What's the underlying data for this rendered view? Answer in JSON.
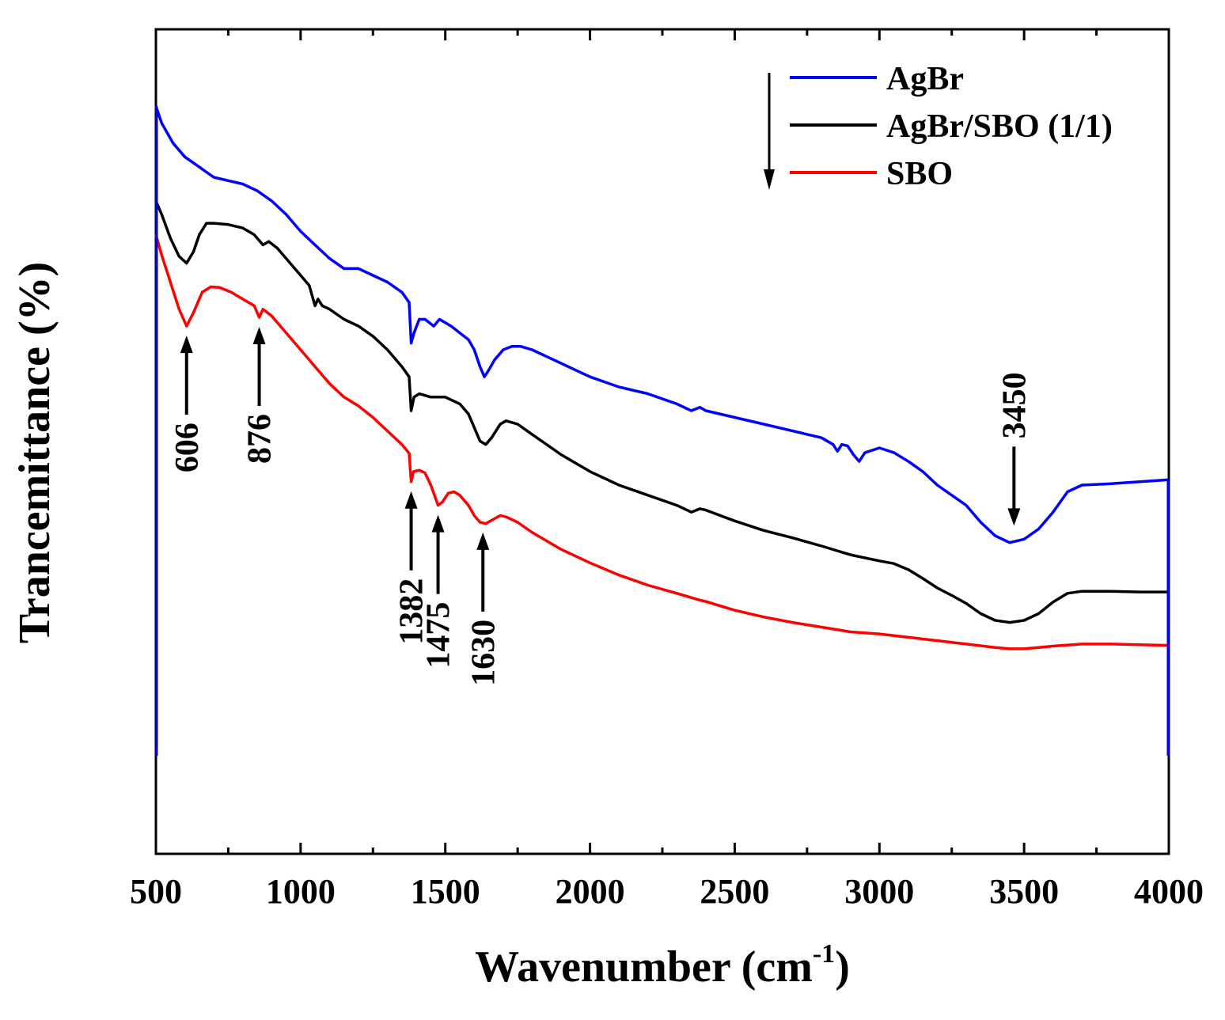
{
  "chart_data": {
    "type": "line",
    "title": "",
    "xlabel": "Wavenumber (cm",
    "xlabel_sup": "-1",
    "xlabel_close": ")",
    "ylabel": "Trancemittance (%)",
    "xlim": [
      500,
      4000
    ],
    "ylim": [
      0,
      1
    ],
    "grid": false,
    "x_ticks": [
      500,
      1000,
      1500,
      2000,
      2500,
      3000,
      3500,
      4000
    ],
    "x_tick_labels": [
      "500",
      "1000",
      "1500",
      "2000",
      "2500",
      "3000",
      "3500",
      "4000"
    ],
    "legend_position": "top-right",
    "series": [
      {
        "name": "AgBr",
        "color": "#0000ff",
        "points": [
          [
            500,
            0.96
          ],
          [
            520,
            0.935
          ],
          [
            560,
            0.905
          ],
          [
            600,
            0.885
          ],
          [
            650,
            0.87
          ],
          [
            700,
            0.855
          ],
          [
            750,
            0.85
          ],
          [
            800,
            0.845
          ],
          [
            850,
            0.835
          ],
          [
            900,
            0.82
          ],
          [
            950,
            0.8
          ],
          [
            1000,
            0.775
          ],
          [
            1050,
            0.755
          ],
          [
            1100,
            0.735
          ],
          [
            1150,
            0.72
          ],
          [
            1200,
            0.72
          ],
          [
            1250,
            0.71
          ],
          [
            1300,
            0.7
          ],
          [
            1350,
            0.685
          ],
          [
            1375,
            0.67
          ],
          [
            1382,
            0.61
          ],
          [
            1392,
            0.625
          ],
          [
            1410,
            0.645
          ],
          [
            1430,
            0.645
          ],
          [
            1460,
            0.635
          ],
          [
            1480,
            0.645
          ],
          [
            1500,
            0.64
          ],
          [
            1520,
            0.635
          ],
          [
            1550,
            0.625
          ],
          [
            1580,
            0.615
          ],
          [
            1600,
            0.6
          ],
          [
            1620,
            0.575
          ],
          [
            1635,
            0.56
          ],
          [
            1650,
            0.57
          ],
          [
            1670,
            0.585
          ],
          [
            1700,
            0.6
          ],
          [
            1730,
            0.605
          ],
          [
            1760,
            0.605
          ],
          [
            1800,
            0.6
          ],
          [
            1850,
            0.59
          ],
          [
            1900,
            0.58
          ],
          [
            1950,
            0.57
          ],
          [
            2000,
            0.56
          ],
          [
            2100,
            0.545
          ],
          [
            2200,
            0.535
          ],
          [
            2300,
            0.52
          ],
          [
            2350,
            0.51
          ],
          [
            2380,
            0.515
          ],
          [
            2400,
            0.51
          ],
          [
            2500,
            0.5
          ],
          [
            2600,
            0.49
          ],
          [
            2700,
            0.48
          ],
          [
            2800,
            0.47
          ],
          [
            2840,
            0.46
          ],
          [
            2855,
            0.45
          ],
          [
            2870,
            0.46
          ],
          [
            2890,
            0.458
          ],
          [
            2910,
            0.445
          ],
          [
            2930,
            0.435
          ],
          [
            2950,
            0.448
          ],
          [
            3000,
            0.455
          ],
          [
            3050,
            0.448
          ],
          [
            3100,
            0.435
          ],
          [
            3150,
            0.42
          ],
          [
            3200,
            0.4
          ],
          [
            3250,
            0.385
          ],
          [
            3300,
            0.37
          ],
          [
            3350,
            0.345
          ],
          [
            3400,
            0.325
          ],
          [
            3450,
            0.315
          ],
          [
            3500,
            0.32
          ],
          [
            3550,
            0.335
          ],
          [
            3600,
            0.36
          ],
          [
            3650,
            0.39
          ],
          [
            3700,
            0.4
          ],
          [
            3800,
            0.402
          ],
          [
            3900,
            0.405
          ],
          [
            4000,
            0.408
          ]
        ]
      },
      {
        "name": "AgBr/SBO (1/1)",
        "color": "#000000",
        "points": [
          [
            500,
            0.82
          ],
          [
            520,
            0.8
          ],
          [
            550,
            0.765
          ],
          [
            580,
            0.738
          ],
          [
            606,
            0.728
          ],
          [
            630,
            0.745
          ],
          [
            650,
            0.77
          ],
          [
            675,
            0.787
          ],
          [
            700,
            0.787
          ],
          [
            750,
            0.785
          ],
          [
            800,
            0.78
          ],
          [
            840,
            0.77
          ],
          [
            870,
            0.755
          ],
          [
            890,
            0.76
          ],
          [
            920,
            0.75
          ],
          [
            950,
            0.735
          ],
          [
            980,
            0.72
          ],
          [
            1000,
            0.71
          ],
          [
            1030,
            0.695
          ],
          [
            1050,
            0.665
          ],
          [
            1060,
            0.675
          ],
          [
            1075,
            0.665
          ],
          [
            1100,
            0.66
          ],
          [
            1150,
            0.645
          ],
          [
            1200,
            0.635
          ],
          [
            1250,
            0.62
          ],
          [
            1300,
            0.6
          ],
          [
            1350,
            0.575
          ],
          [
            1375,
            0.56
          ],
          [
            1382,
            0.51
          ],
          [
            1392,
            0.53
          ],
          [
            1410,
            0.535
          ],
          [
            1450,
            0.53
          ],
          [
            1500,
            0.53
          ],
          [
            1550,
            0.52
          ],
          [
            1580,
            0.505
          ],
          [
            1600,
            0.485
          ],
          [
            1620,
            0.465
          ],
          [
            1640,
            0.46
          ],
          [
            1660,
            0.47
          ],
          [
            1690,
            0.49
          ],
          [
            1710,
            0.495
          ],
          [
            1750,
            0.49
          ],
          [
            1800,
            0.475
          ],
          [
            1900,
            0.445
          ],
          [
            2000,
            0.42
          ],
          [
            2100,
            0.4
          ],
          [
            2200,
            0.385
          ],
          [
            2300,
            0.37
          ],
          [
            2350,
            0.36
          ],
          [
            2380,
            0.365
          ],
          [
            2400,
            0.363
          ],
          [
            2500,
            0.347
          ],
          [
            2600,
            0.333
          ],
          [
            2700,
            0.322
          ],
          [
            2800,
            0.31
          ],
          [
            2900,
            0.297
          ],
          [
            3000,
            0.288
          ],
          [
            3050,
            0.284
          ],
          [
            3100,
            0.275
          ],
          [
            3150,
            0.262
          ],
          [
            3200,
            0.248
          ],
          [
            3250,
            0.237
          ],
          [
            3300,
            0.225
          ],
          [
            3350,
            0.21
          ],
          [
            3400,
            0.2
          ],
          [
            3450,
            0.197
          ],
          [
            3500,
            0.2
          ],
          [
            3550,
            0.21
          ],
          [
            3600,
            0.227
          ],
          [
            3650,
            0.24
          ],
          [
            3700,
            0.243
          ],
          [
            3800,
            0.243
          ],
          [
            3900,
            0.242
          ],
          [
            4000,
            0.242
          ]
        ]
      },
      {
        "name": "SBO",
        "color": "#ff0000",
        "points": [
          [
            500,
            0.77
          ],
          [
            520,
            0.74
          ],
          [
            550,
            0.7
          ],
          [
            580,
            0.66
          ],
          [
            606,
            0.635
          ],
          [
            630,
            0.655
          ],
          [
            660,
            0.685
          ],
          [
            690,
            0.693
          ],
          [
            720,
            0.692
          ],
          [
            760,
            0.685
          ],
          [
            800,
            0.675
          ],
          [
            840,
            0.665
          ],
          [
            857,
            0.648
          ],
          [
            870,
            0.66
          ],
          [
            900,
            0.65
          ],
          [
            950,
            0.625
          ],
          [
            1000,
            0.6
          ],
          [
            1050,
            0.575
          ],
          [
            1100,
            0.55
          ],
          [
            1150,
            0.53
          ],
          [
            1200,
            0.517
          ],
          [
            1250,
            0.5
          ],
          [
            1300,
            0.48
          ],
          [
            1350,
            0.46
          ],
          [
            1375,
            0.447
          ],
          [
            1382,
            0.405
          ],
          [
            1390,
            0.42
          ],
          [
            1410,
            0.422
          ],
          [
            1430,
            0.418
          ],
          [
            1450,
            0.4
          ],
          [
            1475,
            0.37
          ],
          [
            1490,
            0.375
          ],
          [
            1510,
            0.388
          ],
          [
            1530,
            0.39
          ],
          [
            1550,
            0.385
          ],
          [
            1580,
            0.37
          ],
          [
            1600,
            0.355
          ],
          [
            1620,
            0.345
          ],
          [
            1640,
            0.343
          ],
          [
            1660,
            0.348
          ],
          [
            1690,
            0.355
          ],
          [
            1710,
            0.353
          ],
          [
            1750,
            0.345
          ],
          [
            1800,
            0.33
          ],
          [
            1900,
            0.305
          ],
          [
            2000,
            0.285
          ],
          [
            2100,
            0.267
          ],
          [
            2200,
            0.252
          ],
          [
            2300,
            0.24
          ],
          [
            2380,
            0.23
          ],
          [
            2400,
            0.228
          ],
          [
            2500,
            0.215
          ],
          [
            2600,
            0.205
          ],
          [
            2700,
            0.197
          ],
          [
            2800,
            0.19
          ],
          [
            2900,
            0.183
          ],
          [
            3000,
            0.18
          ],
          [
            3100,
            0.175
          ],
          [
            3200,
            0.17
          ],
          [
            3300,
            0.165
          ],
          [
            3400,
            0.16
          ],
          [
            3450,
            0.158
          ],
          [
            3500,
            0.158
          ],
          [
            3550,
            0.16
          ],
          [
            3600,
            0.162
          ],
          [
            3700,
            0.165
          ],
          [
            3800,
            0.165
          ],
          [
            3900,
            0.164
          ],
          [
            4000,
            0.163
          ]
        ]
      }
    ],
    "annotations": [
      {
        "label": "606",
        "x": 606,
        "series": 2,
        "direction": "up"
      },
      {
        "label": "876",
        "x": 857,
        "series": 2,
        "direction": "up"
      },
      {
        "label": "1382",
        "x": 1382,
        "series": 2,
        "direction": "up"
      },
      {
        "label": "1475",
        "x": 1475,
        "series": 2,
        "direction": "up"
      },
      {
        "label": "1630",
        "x": 1630,
        "series": 2,
        "direction": "up"
      },
      {
        "label": "3450",
        "x": 3465,
        "series": 0,
        "direction": "down"
      }
    ]
  }
}
